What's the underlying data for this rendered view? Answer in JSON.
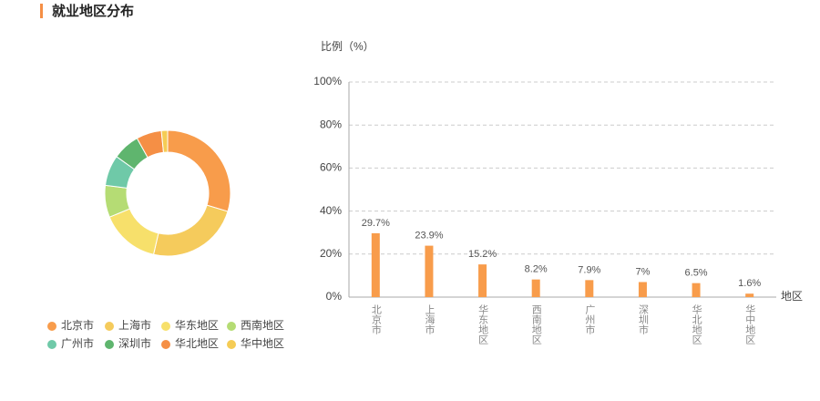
{
  "header": {
    "title": "就业地区分布"
  },
  "chart_data": [
    {
      "type": "pie",
      "donut": true,
      "categories": [
        "北京市",
        "上海市",
        "华东地区",
        "西南地区",
        "广州市",
        "深圳市",
        "华北地区",
        "华中地区"
      ],
      "values": [
        29.7,
        23.9,
        15.2,
        8.2,
        7.9,
        7,
        6.5,
        1.6
      ],
      "colors": [
        "#f89c4b",
        "#f5cb5c",
        "#f7e06b",
        "#b5dc74",
        "#6fc9a8",
        "#5fb56e",
        "#f58f45",
        "#f5cc55"
      ]
    },
    {
      "type": "bar",
      "y_label": "比例（%）",
      "x_label": "地区",
      "categories": [
        "北京市",
        "上海市",
        "华东地区",
        "西南地区",
        "广州市",
        "深圳市",
        "华北地区",
        "华中地区"
      ],
      "values": [
        29.7,
        23.9,
        15.2,
        8.2,
        7.9,
        7,
        6.5,
        1.6
      ],
      "value_labels": [
        "29.7%",
        "23.9%",
        "15.2%",
        "8.2%",
        "7.9%",
        "7%",
        "6.5%",
        "1.6%"
      ],
      "color": "#f89c4b",
      "ylim": [
        0,
        100
      ],
      "yticks": [
        {
          "value": 0,
          "label": "0%"
        },
        {
          "value": 20,
          "label": "20%"
        },
        {
          "value": 40,
          "label": "40%"
        },
        {
          "value": 60,
          "label": "60%"
        },
        {
          "value": 80,
          "label": "80%"
        },
        {
          "value": 100,
          "label": "100%"
        }
      ],
      "grid": true
    }
  ]
}
